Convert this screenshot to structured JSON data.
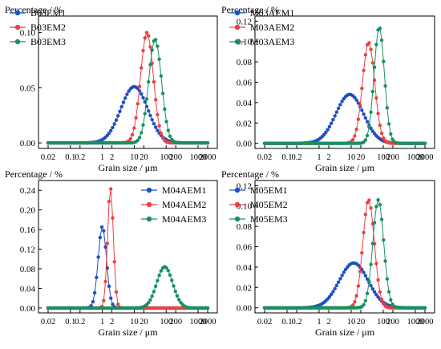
{
  "colors": {
    "series1": "#1f4fc1",
    "series2": "#ef3f3f",
    "series3": "#16925e",
    "axis": "#000000"
  },
  "chart_data": [
    {
      "type": "line",
      "title": "",
      "ylabel": "Percentage / %",
      "xlabel": "Grain size / μm",
      "xscale": "log",
      "xlim": [
        0.02,
        2000
      ],
      "ylim": [
        -0.005,
        0.115
      ],
      "xticks": [
        0.02,
        0.1,
        0.2,
        1,
        2,
        10,
        20,
        100,
        200,
        1000,
        2000
      ],
      "xticklabels": [
        "0.02",
        "0.1",
        "0.2",
        "1",
        "2",
        "10",
        "20",
        "100",
        "200",
        "1000",
        "2000"
      ],
      "yticks": [
        0.0,
        0.05,
        0.1
      ],
      "yticklabels": [
        "0.00",
        "0.05",
        "0.10"
      ],
      "legend_position": "top-left",
      "series": [
        {
          "name": "B03EM1",
          "peak_x": 10,
          "peak_y": 0.051,
          "sigma_log10": 0.42
        },
        {
          "name": "B03EM2",
          "peak_x": 25,
          "peak_y": 0.1,
          "sigma_log10": 0.2
        },
        {
          "name": "B03EM3",
          "peak_x": 45,
          "peak_y": 0.094,
          "sigma_log10": 0.2
        }
      ]
    },
    {
      "type": "line",
      "title": "",
      "ylabel": "Percentage / %",
      "xlabel": "Grain size / μm",
      "xscale": "log",
      "xlim": [
        0.02,
        2000
      ],
      "ylim": [
        -0.005,
        0.125
      ],
      "xticks": [
        0.02,
        0.1,
        0.2,
        1,
        2,
        10,
        20,
        100,
        200,
        1000,
        2000
      ],
      "xticklabels": [
        "0.02",
        "0.1",
        "0.2",
        "1",
        "2",
        "10",
        "20",
        "100",
        "200",
        "1000",
        "2000"
      ],
      "yticks": [
        0.0,
        0.02,
        0.04,
        0.06,
        0.08,
        0.1,
        0.12
      ],
      "yticklabels": [
        "0.00",
        "0.02",
        "0.04",
        "0.06",
        "0.08",
        "0.10",
        "0.12"
      ],
      "legend_position": "top-center",
      "series": [
        {
          "name": "M03AEM1",
          "peak_x": 9,
          "peak_y": 0.048,
          "sigma_log10": 0.43
        },
        {
          "name": "M03AEM2",
          "peak_x": 35,
          "peak_y": 0.099,
          "sigma_log10": 0.19
        },
        {
          "name": "M03AEM3",
          "peak_x": 75,
          "peak_y": 0.114,
          "sigma_log10": 0.16
        }
      ]
    },
    {
      "type": "line",
      "title": "",
      "ylabel": "Percentage / %",
      "xlabel": "Grain size / μm",
      "xscale": "log",
      "xlim": [
        0.02,
        2000
      ],
      "ylim": [
        -0.01,
        0.26
      ],
      "xticks": [
        0.02,
        0.1,
        0.2,
        1,
        2,
        10,
        20,
        100,
        200,
        1000,
        2000
      ],
      "xticklabels": [
        "0.02",
        "0.1",
        "0.2",
        "1",
        "2",
        "10",
        "20",
        "100",
        "200",
        "1000",
        "2000"
      ],
      "yticks": [
        0.0,
        0.04,
        0.08,
        0.12,
        0.16,
        0.2,
        0.24
      ],
      "yticklabels": [
        "0.00",
        "0.04",
        "0.08",
        "0.12",
        "0.16",
        "0.20",
        "0.24"
      ],
      "legend_position": "top-right",
      "series": [
        {
          "name": "M04AEM1",
          "peak_x": 1.0,
          "peak_y": 0.166,
          "sigma_log10": 0.13
        },
        {
          "name": "M04AEM2",
          "peak_x": 1.8,
          "peak_y": 0.245,
          "sigma_log10": 0.09
        },
        {
          "name": "M04AEM3",
          "peak_x": 90,
          "peak_y": 0.084,
          "sigma_log10": 0.25
        }
      ]
    },
    {
      "type": "line",
      "title": "",
      "ylabel": "Percentage / %",
      "xlabel": "Grain size / μm",
      "xscale": "log",
      "xlim": [
        0.02,
        2000
      ],
      "ylim": [
        -0.005,
        0.125
      ],
      "xticks": [
        0.02,
        0.1,
        0.2,
        1,
        2,
        10,
        20,
        100,
        200,
        1000,
        2000
      ],
      "xticklabels": [
        "0.02",
        "0.1",
        "0.2",
        "1",
        "2",
        "10",
        "20",
        "100",
        "200",
        "1000",
        "2000"
      ],
      "yticks": [
        0.0,
        0.02,
        0.04,
        0.06,
        0.08,
        0.1,
        0.12
      ],
      "yticklabels": [
        "0.00",
        "0.02",
        "0.04",
        "0.06",
        "0.08",
        "0.10",
        "0.12"
      ],
      "legend_position": "top-left",
      "series": [
        {
          "name": "M05EM1",
          "peak_x": 12,
          "peak_y": 0.044,
          "sigma_log10": 0.45
        },
        {
          "name": "M05EM2",
          "peak_x": 35,
          "peak_y": 0.106,
          "sigma_log10": 0.18
        },
        {
          "name": "M05EM3",
          "peak_x": 70,
          "peak_y": 0.106,
          "sigma_log10": 0.17
        }
      ]
    }
  ]
}
